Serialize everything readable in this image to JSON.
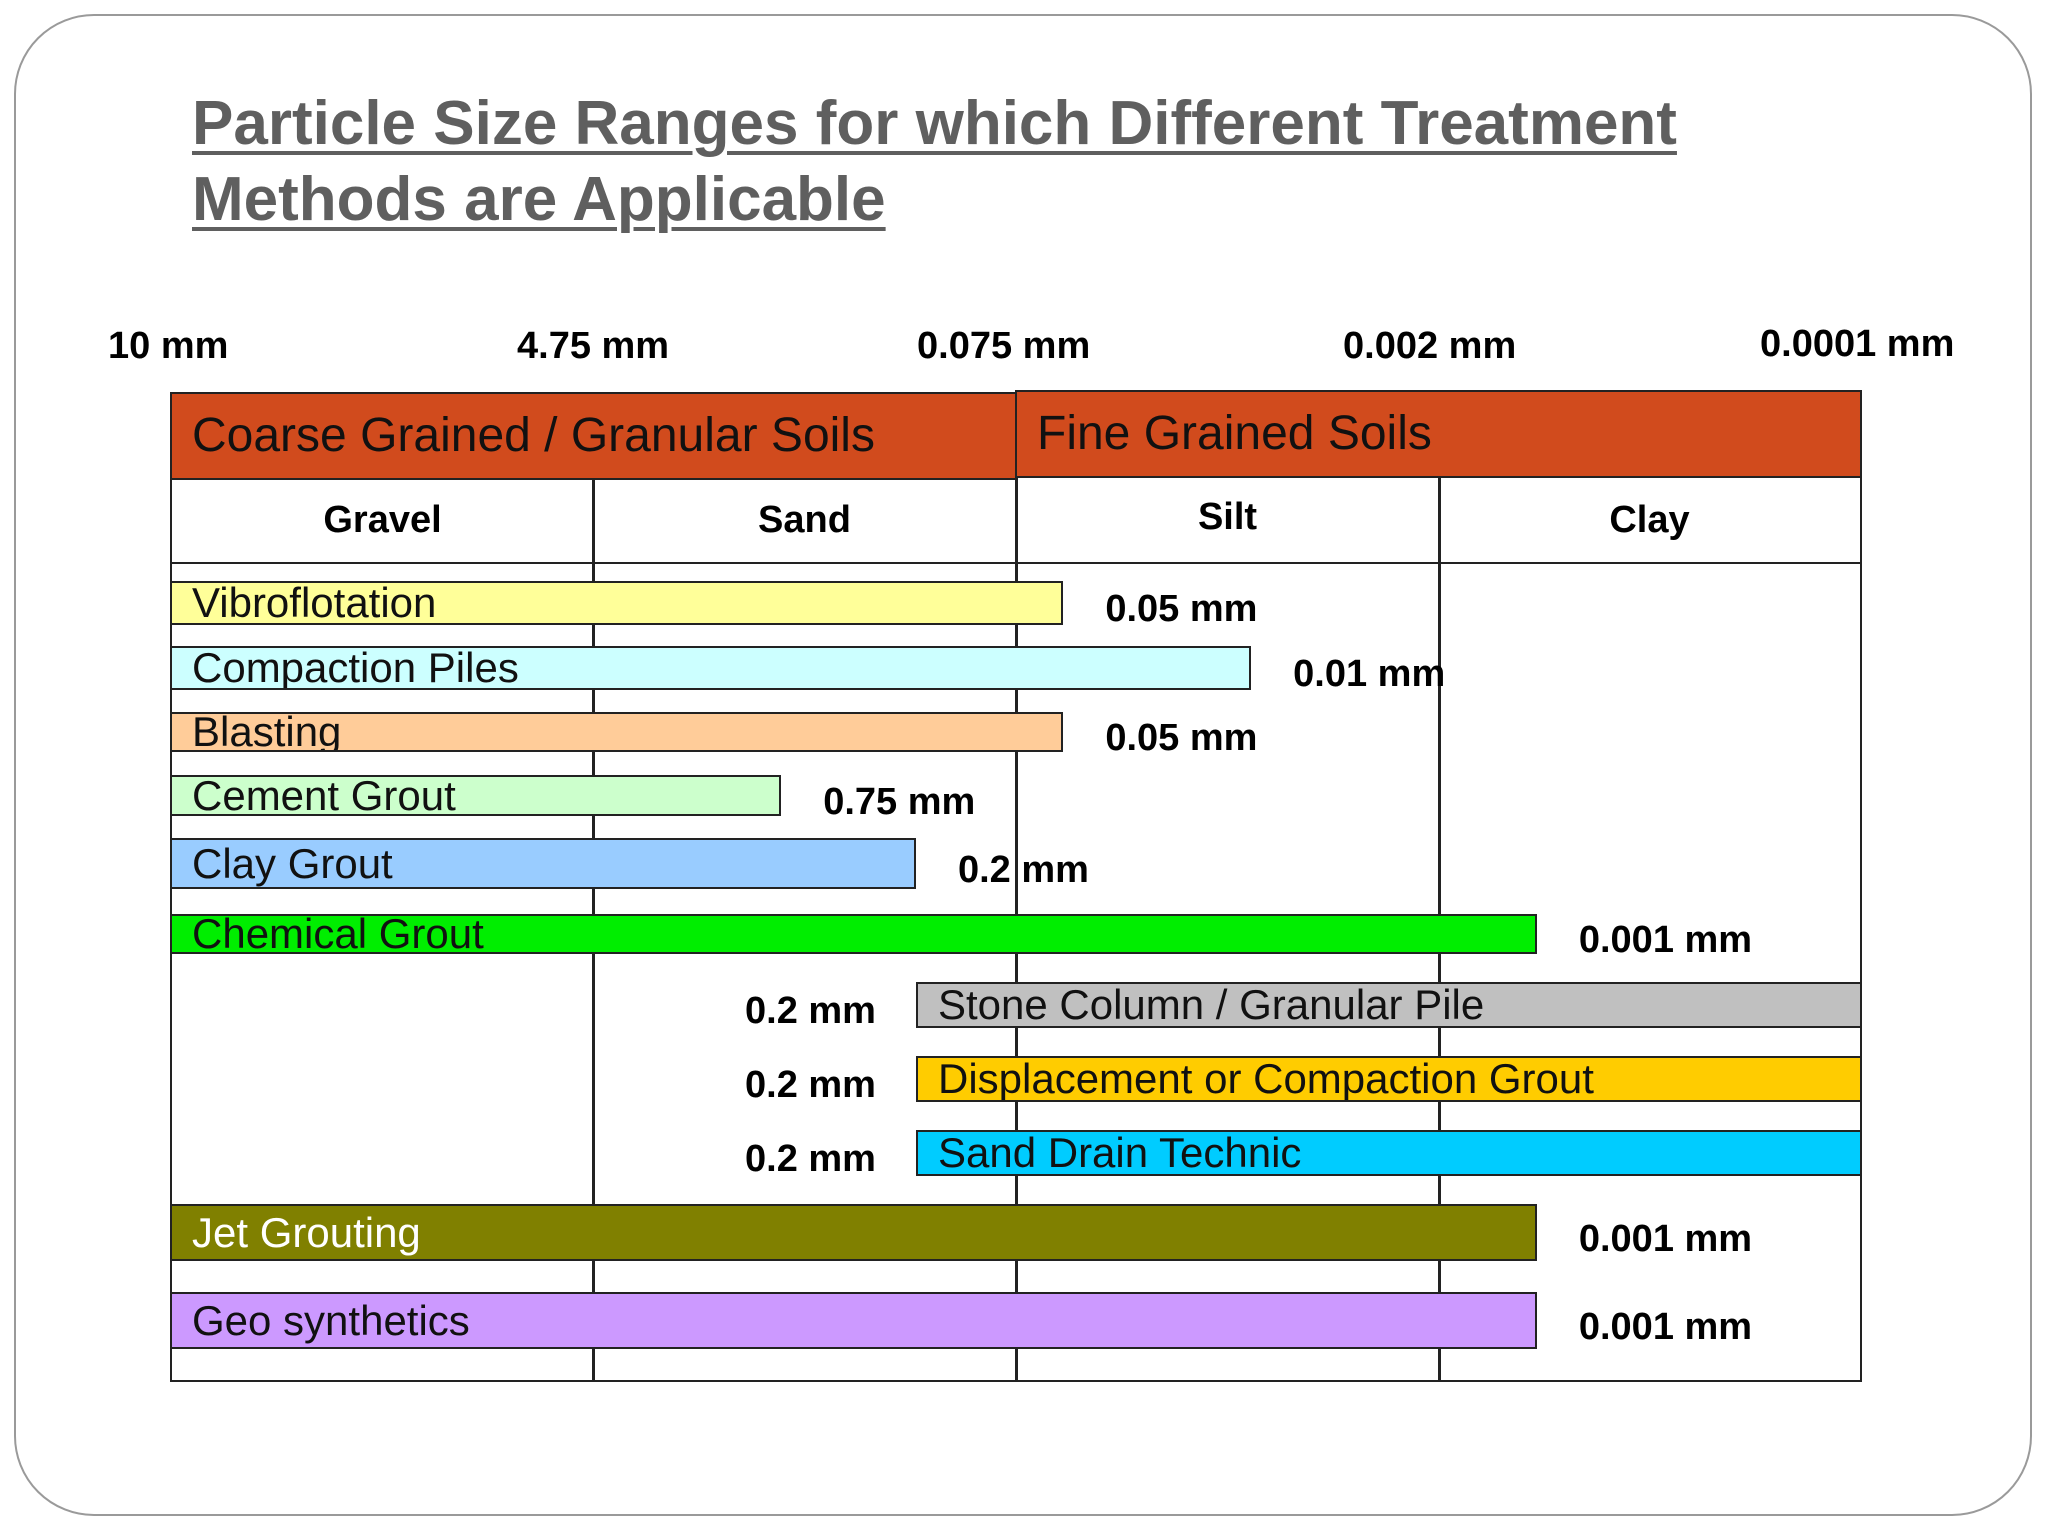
{
  "chart_data": {
    "type": "bar",
    "title": "Particle Size Ranges for which Different Treatment Methods are Applicable",
    "x_ticks": [
      "10 mm",
      "4.75 mm",
      "0.075 mm",
      "0.002 mm",
      "0.0001 mm"
    ],
    "soil_groups": [
      {
        "label": "Coarse Grained / Granular Soils",
        "from": "10 mm",
        "to": "0.075 mm"
      },
      {
        "label": "Fine Grained Soils",
        "from": "0.075 mm",
        "to": "0.0001 mm"
      }
    ],
    "soil_classes": [
      {
        "label": "Gravel",
        "from": "10 mm",
        "to": "4.75 mm"
      },
      {
        "label": "Sand",
        "from": "4.75 mm",
        "to": "0.075 mm"
      },
      {
        "label": "Silt",
        "from": "0.075 mm",
        "to": "0.002 mm"
      },
      {
        "label": "Clay",
        "from": "0.002 mm",
        "to": "0.0001 mm"
      }
    ],
    "series": [
      {
        "name": "Vibroflotation",
        "from_mm": 10,
        "to_mm": 0.05,
        "limit_label": "0.05 mm",
        "color": "#ffff99",
        "text_color": "#111111"
      },
      {
        "name": "Compaction Piles",
        "from_mm": 10,
        "to_mm": 0.01,
        "limit_label": "0.01 mm",
        "color": "#ccffff",
        "text_color": "#111111"
      },
      {
        "name": "Blasting",
        "from_mm": 10,
        "to_mm": 0.05,
        "limit_label": "0.05 mm",
        "color": "#ffcc99",
        "text_color": "#111111"
      },
      {
        "name": "Cement Grout",
        "from_mm": 10,
        "to_mm": 0.75,
        "limit_label": "0.75 mm",
        "color": "#ccffcc",
        "text_color": "#111111"
      },
      {
        "name": "Clay Grout",
        "from_mm": 10,
        "to_mm": 0.2,
        "limit_label": "0.2 mm",
        "color": "#99ccff",
        "text_color": "#111111"
      },
      {
        "name": "Chemical Grout",
        "from_mm": 10,
        "to_mm": 0.001,
        "limit_label": "0.001 mm",
        "color": "#00ee00",
        "text_color": "#111111"
      },
      {
        "name": "Stone Column / Granular Pile",
        "from_mm": 0.2,
        "to_mm": 0.0001,
        "limit_label": "0.2 mm",
        "color": "#c0c0c0",
        "text_color": "#111111"
      },
      {
        "name": "Displacement or Compaction Grout",
        "from_mm": 0.2,
        "to_mm": 0.0001,
        "limit_label": "0.2 mm",
        "color": "#ffcc00",
        "text_color": "#111111"
      },
      {
        "name": "Sand Drain Technic",
        "from_mm": 0.2,
        "to_mm": 0.0001,
        "limit_label": "0.2 mm",
        "color": "#00ccff",
        "text_color": "#111111"
      },
      {
        "name": "Jet Grouting",
        "from_mm": 10,
        "to_mm": 0.001,
        "limit_label": "0.001 mm",
        "color": "#808000",
        "text_color": "#ffffff"
      },
      {
        "name": "Geo synthetics",
        "from_mm": 10,
        "to_mm": 0.001,
        "limit_label": "0.001 mm",
        "color": "#cc99ff",
        "text_color": "#111111"
      }
    ]
  }
}
